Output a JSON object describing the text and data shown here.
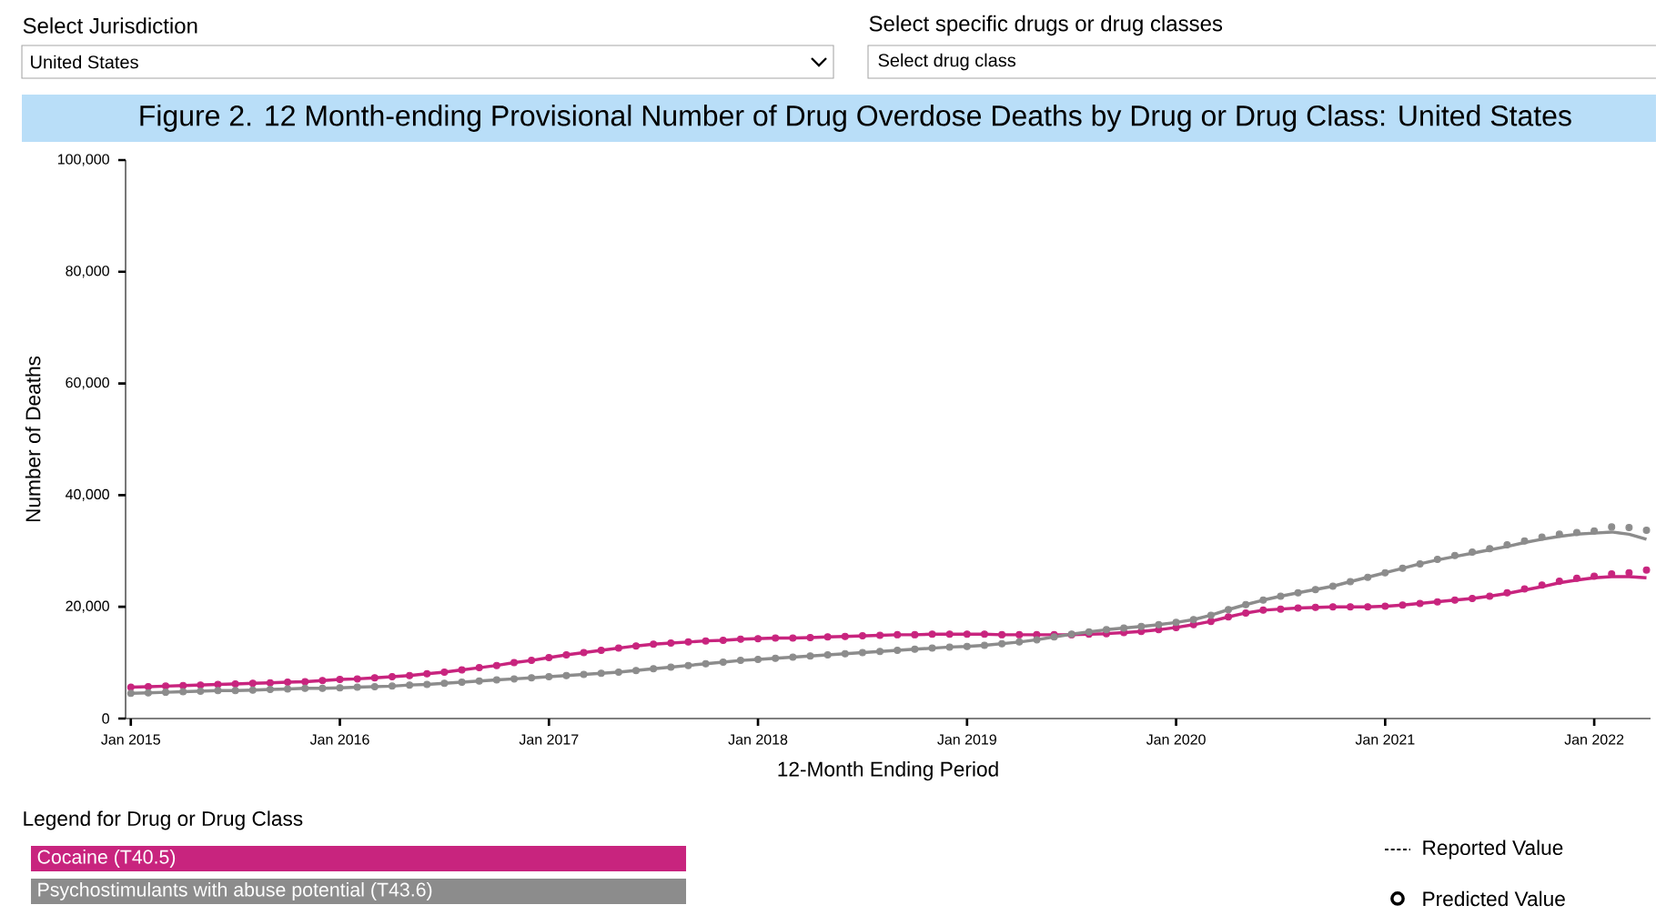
{
  "chart_data": {
    "type": "line",
    "title": "Figure 2. 12 Month-ending Provisional Number of Drug Overdose Deaths by Drug or Drug Class: United States",
    "xlabel": "12-Month Ending Period",
    "ylabel": "Number of Deaths",
    "legend_title": "Legend for Drug or Drug Class",
    "annotations": [
      "Select Jurisdiction",
      "United States",
      "Select specific drugs or drug classes",
      "Select drug class",
      "Reported Value",
      "Predicted Value"
    ],
    "x": [
      "2015-01",
      "2015-02",
      "2015-03",
      "2015-04",
      "2015-05",
      "2015-06",
      "2015-07",
      "2015-08",
      "2015-09",
      "2015-10",
      "2015-11",
      "2015-12",
      "2016-01",
      "2016-02",
      "2016-03",
      "2016-04",
      "2016-05",
      "2016-06",
      "2016-07",
      "2016-08",
      "2016-09",
      "2016-10",
      "2016-11",
      "2016-12",
      "2017-01",
      "2017-02",
      "2017-03",
      "2017-04",
      "2017-05",
      "2017-06",
      "2017-07",
      "2017-08",
      "2017-09",
      "2017-10",
      "2017-11",
      "2017-12",
      "2018-01",
      "2018-02",
      "2018-03",
      "2018-04",
      "2018-05",
      "2018-06",
      "2018-07",
      "2018-08",
      "2018-09",
      "2018-10",
      "2018-11",
      "2018-12",
      "2019-01",
      "2019-02",
      "2019-03",
      "2019-04",
      "2019-05",
      "2019-06",
      "2019-07",
      "2019-08",
      "2019-09",
      "2019-10",
      "2019-11",
      "2019-12",
      "2020-01",
      "2020-02",
      "2020-03",
      "2020-04",
      "2020-05",
      "2020-06",
      "2020-07",
      "2020-08",
      "2020-09",
      "2020-10",
      "2020-11",
      "2020-12",
      "2021-01",
      "2021-02",
      "2021-03",
      "2021-04",
      "2021-05",
      "2021-06",
      "2021-07",
      "2021-08",
      "2021-09",
      "2021-10",
      "2021-11",
      "2021-12",
      "2022-01",
      "2022-02",
      "2022-03",
      "2022-04"
    ],
    "series": [
      {
        "name": "Cocaine (T40.5)",
        "type": "scatter",
        "marker": "circle",
        "color": "#c8247e",
        "values": [
          5600,
          5700,
          5800,
          5900,
          6000,
          6100,
          6200,
          6300,
          6400,
          6500,
          6600,
          6800,
          7000,
          7100,
          7300,
          7500,
          7700,
          8000,
          8300,
          8700,
          9100,
          9500,
          10000,
          10400,
          10900,
          11400,
          11800,
          12200,
          12600,
          13000,
          13300,
          13500,
          13700,
          13900,
          14000,
          14200,
          14300,
          14400,
          14400,
          14500,
          14600,
          14700,
          14800,
          14900,
          15000,
          15000,
          15100,
          15100,
          15100,
          15100,
          15000,
          15000,
          15000,
          15000,
          15000,
          15100,
          15200,
          15400,
          15600,
          15900,
          16300,
          16800,
          17400,
          18200,
          18900,
          19400,
          19600,
          19800,
          19900,
          20000,
          20000,
          20000,
          20100,
          20300,
          20600,
          20900,
          21200,
          21500,
          21900,
          22500,
          23200,
          23900,
          24600,
          25100,
          25500,
          25900,
          26100,
          26600
        ]
      },
      {
        "line_style": "solid",
        "color": "#c8247e",
        "values": [
          5600,
          5700,
          5800,
          5900,
          6000,
          6100,
          6200,
          6300,
          6400,
          6500,
          6600,
          6800,
          7000,
          7100,
          7300,
          7500,
          7700,
          8000,
          8300,
          8700,
          9100,
          9500,
          10000,
          10400,
          10900,
          11400,
          11800,
          12200,
          12600,
          13000,
          13300,
          13500,
          13700,
          13900,
          14000,
          14200,
          14300,
          14400,
          14400,
          14500,
          14600,
          14700,
          14800,
          14900,
          15000,
          15000,
          15100,
          15100,
          15100,
          15100,
          15000,
          15000,
          15000,
          15000,
          15000,
          15100,
          15200,
          15400,
          15600,
          15900,
          16300,
          16800,
          17400,
          18200,
          18900,
          19400,
          19600,
          19800,
          19900,
          20000,
          20000,
          20000,
          20100,
          20300,
          20600,
          20900,
          21200,
          21500,
          21900,
          22400,
          23000,
          23600,
          24300,
          24800,
          25200,
          25400,
          25400,
          25200
        ]
      },
      {
        "name": "Psychostimulants with abuse potential (T43.6)",
        "type": "scatter",
        "marker": "circle",
        "color": "#8c8c8c",
        "values": [
          4500,
          4600,
          4700,
          4800,
          4900,
          5000,
          5000,
          5100,
          5200,
          5300,
          5400,
          5400,
          5500,
          5600,
          5700,
          5800,
          6000,
          6100,
          6300,
          6500,
          6700,
          6900,
          7100,
          7300,
          7500,
          7700,
          7900,
          8100,
          8300,
          8600,
          8900,
          9200,
          9500,
          9800,
          10100,
          10400,
          10600,
          10800,
          11000,
          11200,
          11400,
          11600,
          11800,
          12000,
          12200,
          12400,
          12600,
          12800,
          12900,
          13100,
          13400,
          13700,
          14100,
          14600,
          15100,
          15500,
          15900,
          16200,
          16500,
          16800,
          17200,
          17700,
          18500,
          19500,
          20400,
          21200,
          21900,
          22500,
          23100,
          23700,
          24500,
          25300,
          26100,
          26900,
          27700,
          28500,
          29200,
          29800,
          30400,
          31100,
          31800,
          32500,
          33000,
          33300,
          33600,
          34300,
          34200,
          33700
        ]
      },
      {
        "line_style": "solid",
        "color": "#8c8c8c",
        "values": [
          4500,
          4600,
          4700,
          4800,
          4900,
          5000,
          5000,
          5100,
          5200,
          5300,
          5400,
          5400,
          5500,
          5600,
          5700,
          5800,
          6000,
          6100,
          6300,
          6500,
          6700,
          6900,
          7100,
          7300,
          7500,
          7700,
          7900,
          8100,
          8300,
          8600,
          8900,
          9200,
          9500,
          9800,
          10100,
          10400,
          10600,
          10800,
          11000,
          11200,
          11400,
          11600,
          11800,
          12000,
          12200,
          12400,
          12600,
          12800,
          12900,
          13100,
          13400,
          13700,
          14100,
          14600,
          15100,
          15500,
          15900,
          16200,
          16500,
          16800,
          17200,
          17700,
          18500,
          19500,
          20400,
          21200,
          21900,
          22500,
          23100,
          23700,
          24500,
          25300,
          26100,
          26900,
          27700,
          28400,
          29000,
          29600,
          30200,
          30800,
          31500,
          32100,
          32600,
          33000,
          33200,
          33400,
          33000,
          32100
        ]
      }
    ],
    "xlim": [
      "2014-12-22",
      "2022-04-08"
    ],
    "xticks": [
      {
        "value": "2015-01",
        "label": "Jan 2015"
      },
      {
        "value": "2016-01",
        "label": "Jan 2016"
      },
      {
        "value": "2017-01",
        "label": "Jan 2017"
      },
      {
        "value": "2018-01",
        "label": "Jan 2018"
      },
      {
        "value": "2019-01",
        "label": "Jan 2019"
      },
      {
        "value": "2020-01",
        "label": "Jan 2020"
      },
      {
        "value": "2021-01",
        "label": "Jan 2021"
      },
      {
        "value": "2022-01",
        "label": "Jan 2022"
      }
    ],
    "ylim": [
      0,
      100000
    ],
    "yticks": [
      0,
      {
        "value": 20000,
        "label": "20,000"
      },
      {
        "value": 40000,
        "label": "40,000"
      },
      {
        "value": 60000,
        "label": "60,000"
      },
      {
        "value": 80000,
        "label": "80,000"
      },
      {
        "value": 100000,
        "label": "100,000"
      }
    ],
    "grid": false,
    "legend": "bottom"
  }
}
